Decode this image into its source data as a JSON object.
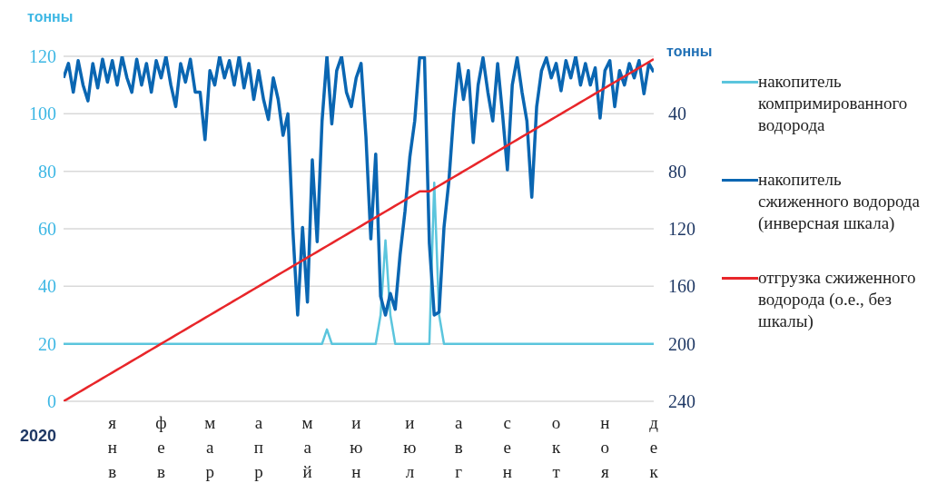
{
  "chart_data": {
    "type": "line",
    "ylabel": "тонны",
    "y2label": "тонны",
    "xlabel": "2020",
    "categories": [
      null,
      null,
      null,
      null,
      null,
      null,
      null,
      null,
      null,
      null,
      "янв",
      null,
      null,
      null,
      null,
      null,
      null,
      null,
      null,
      null,
      "фев",
      null,
      null,
      null,
      null,
      null,
      null,
      null,
      null,
      null,
      "мар",
      null,
      null,
      null,
      null,
      null,
      null,
      null,
      null,
      null,
      "апр",
      null,
      null,
      null,
      null,
      null,
      null,
      null,
      null,
      null,
      "май",
      null,
      null,
      null,
      null,
      null,
      null,
      null,
      null,
      null,
      "июн",
      null,
      null,
      null,
      null,
      null,
      null,
      null,
      null,
      null,
      null,
      "июл",
      null,
      null,
      null,
      null,
      null,
      null,
      null,
      null,
      null,
      "авг",
      null,
      null,
      null,
      null,
      null,
      null,
      null,
      null,
      null,
      "сен",
      null,
      null,
      null,
      null,
      null,
      null,
      null,
      null,
      null,
      "окт",
      null,
      null,
      null,
      null,
      null,
      null,
      null,
      null,
      null,
      "ноя",
      null,
      null,
      null,
      null,
      null,
      null,
      null,
      null,
      null,
      "дек"
    ],
    "ylim": [
      0,
      120
    ],
    "yticks": [
      0,
      20,
      40,
      60,
      80,
      100,
      120
    ],
    "y2lim": [
      240,
      0
    ],
    "y2ticks": [
      40,
      80,
      120,
      160,
      200,
      240
    ],
    "grid": "y",
    "legend": "right",
    "marker": "none",
    "line_style": "solid",
    "series": [
      {
        "name": "накопитель компримированного водорода",
        "color": "#5bc5dd",
        "values": [
          20,
          20,
          20,
          20,
          20,
          20,
          20,
          20,
          20,
          20,
          20,
          20,
          20,
          20,
          20,
          20,
          20,
          20,
          20,
          20,
          20,
          20,
          20,
          20,
          20,
          20,
          20,
          20,
          20,
          20,
          20,
          20,
          20,
          20,
          20,
          20,
          20,
          20,
          20,
          20,
          20,
          20,
          20,
          20,
          20,
          20,
          20,
          20,
          20,
          20,
          20,
          20,
          20,
          20,
          25,
          20,
          20,
          20,
          20,
          20,
          20,
          20,
          20,
          20,
          20,
          30,
          56,
          30,
          20,
          20,
          20,
          20,
          20,
          20,
          20,
          20,
          76,
          30,
          20,
          20,
          20,
          20,
          20,
          20,
          20,
          20,
          20,
          20,
          20,
          20,
          20,
          20,
          20,
          20,
          20,
          20,
          20,
          20,
          20,
          20,
          20,
          20,
          20,
          20,
          20,
          20,
          20,
          20,
          20,
          20,
          20,
          20,
          20,
          20,
          20,
          20,
          20,
          20,
          20,
          20,
          20,
          20
        ]
      },
      {
        "name": "накопитель сжиженного водорода (инверсная шкала)",
        "color": "#0a66b2",
        "axis": "y2",
        "values": [
          15,
          5,
          25,
          3,
          20,
          31,
          5,
          22,
          2,
          18,
          3,
          20,
          0,
          15,
          25,
          2,
          20,
          5,
          25,
          3,
          15,
          0,
          20,
          35,
          5,
          18,
          2,
          25,
          25,
          58,
          10,
          20,
          0,
          15,
          3,
          20,
          0,
          22,
          5,
          30,
          10,
          30,
          44,
          15,
          30,
          55,
          40,
          120,
          180,
          119,
          171,
          72,
          129,
          45,
          0,
          47,
          10,
          0,
          25,
          35,
          15,
          5,
          56,
          127,
          68,
          167,
          180,
          165,
          176,
          138,
          108,
          70,
          45,
          1,
          1,
          130,
          180,
          178,
          119,
          87,
          40,
          5,
          30,
          10,
          60,
          20,
          1,
          25,
          45,
          5,
          40,
          79,
          20,
          1,
          25,
          45,
          98,
          35,
          10,
          1,
          15,
          5,
          24,
          3,
          15,
          0,
          20,
          5,
          20,
          8,
          43,
          10,
          3,
          35,
          10,
          20,
          5,
          15,
          3,
          26,
          5,
          11
        ]
      },
      {
        "name": "отгрузка сжиженного водорода (о.е., без шкалы)",
        "color": "#e8262a",
        "values": [
          0,
          1,
          2,
          3,
          4,
          5,
          6,
          7,
          8,
          9,
          10,
          11,
          12,
          13,
          14,
          15,
          16,
          17,
          18,
          19,
          20,
          21,
          22,
          23,
          24,
          25,
          26,
          27,
          28,
          29,
          30,
          31,
          32,
          33,
          34,
          35,
          36,
          37,
          38,
          39,
          40,
          41,
          42,
          43,
          44,
          45,
          46,
          47,
          48,
          49,
          50,
          51,
          52,
          53,
          54,
          55,
          56,
          57,
          58,
          59,
          60,
          61,
          62,
          63,
          64,
          65,
          66,
          67,
          68,
          69,
          70,
          71,
          72,
          73,
          73,
          73,
          74,
          75,
          76,
          77,
          78,
          79,
          80,
          81,
          82,
          83,
          84,
          85,
          86,
          87,
          88,
          89,
          90,
          91,
          92,
          93,
          94,
          95,
          96,
          97,
          98,
          99,
          100,
          101,
          102,
          103,
          104,
          105,
          106,
          107,
          108,
          109,
          110,
          111,
          112,
          113,
          114,
          115,
          116,
          117,
          118,
          119
        ]
      }
    ]
  }
}
